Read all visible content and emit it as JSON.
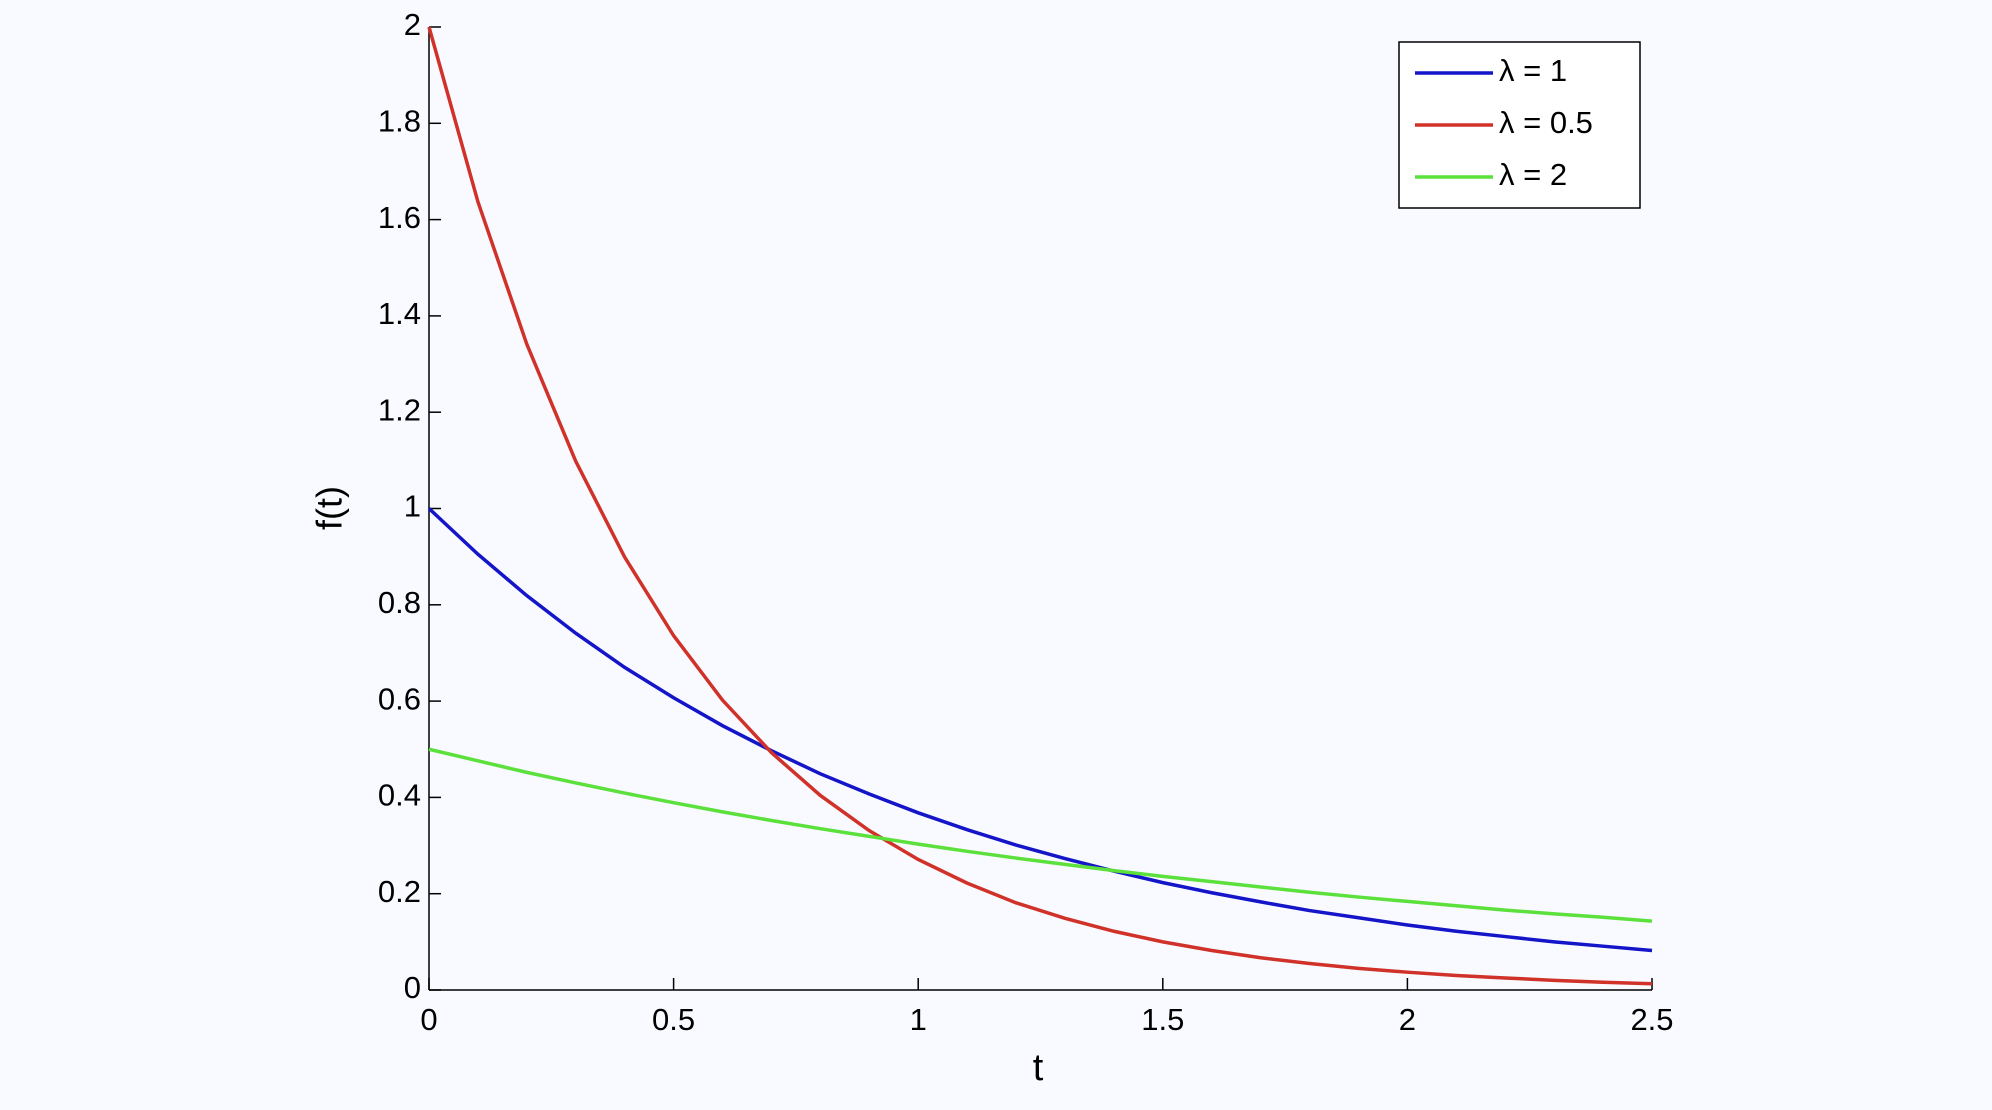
{
  "chart_data": {
    "type": "line",
    "xlabel": "t",
    "ylabel": "f(t)",
    "x": [
      0,
      0.1,
      0.2,
      0.3,
      0.4,
      0.5,
      0.6,
      0.7,
      0.8,
      0.9,
      1,
      1.1,
      1.2,
      1.3,
      1.4,
      1.5,
      1.6,
      1.7,
      1.8,
      1.9,
      2,
      2.1,
      2.2,
      2.3,
      2.4,
      2.5
    ],
    "series": [
      {
        "name": "λ = 1",
        "color": "#1414c8",
        "values": [
          1,
          0.905,
          0.819,
          0.741,
          0.67,
          0.607,
          0.549,
          0.497,
          0.449,
          0.407,
          0.368,
          0.333,
          0.301,
          0.273,
          0.247,
          0.223,
          0.202,
          0.183,
          0.165,
          0.15,
          0.135,
          0.122,
          0.111,
          0.1,
          0.091,
          0.082
        ]
      },
      {
        "name": "λ = 0.5",
        "color": "#d0322a",
        "values": [
          2,
          1.637,
          1.341,
          1.098,
          0.899,
          0.736,
          0.602,
          0.493,
          0.404,
          0.331,
          0.271,
          0.222,
          0.181,
          0.149,
          0.122,
          0.1,
          0.082,
          0.067,
          0.055,
          0.045,
          0.037,
          0.03,
          0.025,
          0.02,
          0.016,
          0.013
        ]
      },
      {
        "name": "λ = 2",
        "color": "#5ce03c",
        "values": [
          0.5,
          0.476,
          0.452,
          0.43,
          0.409,
          0.389,
          0.37,
          0.352,
          0.335,
          0.319,
          0.303,
          0.288,
          0.274,
          0.261,
          0.248,
          0.236,
          0.225,
          0.214,
          0.203,
          0.193,
          0.184,
          0.175,
          0.166,
          0.158,
          0.151,
          0.143
        ]
      }
    ],
    "xlim": [
      0,
      2.5
    ],
    "xticks": [
      0,
      0.5,
      1,
      1.5,
      2,
      2.5
    ],
    "ylim": [
      0,
      2
    ],
    "yticks": [
      0,
      0.2,
      0.4,
      0.6,
      0.8,
      1,
      1.2,
      1.4,
      1.6,
      1.8,
      2
    ],
    "legend": "upper right"
  }
}
